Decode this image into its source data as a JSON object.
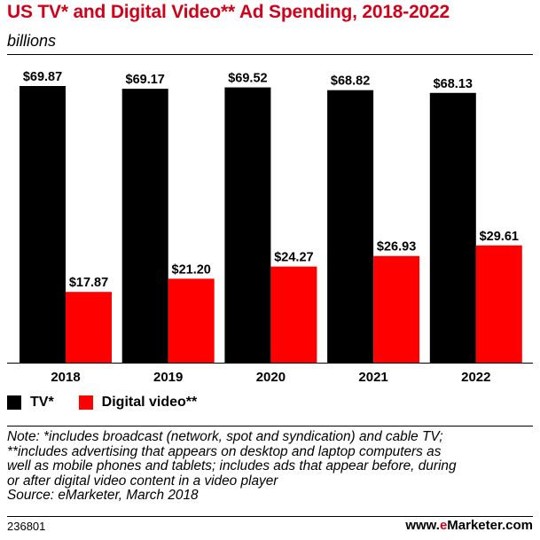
{
  "chart_data": {
    "type": "bar",
    "title": "US TV* and Digital Video** Ad Spending, 2018-2022",
    "subtitle": "billions",
    "categories": [
      "2018",
      "2019",
      "2020",
      "2021",
      "2022"
    ],
    "series": [
      {
        "name": "TV*",
        "color": "#000000",
        "values": [
          69.87,
          69.17,
          69.52,
          68.82,
          68.13
        ],
        "labels": [
          "$69.87",
          "$69.17",
          "$69.52",
          "$68.82",
          "$68.13"
        ]
      },
      {
        "name": "Digital video**",
        "color": "#ff0000",
        "values": [
          17.87,
          21.2,
          24.27,
          26.93,
          29.61
        ],
        "labels": [
          "$17.87",
          "$21.20",
          "$24.27",
          "$26.93",
          "$29.61"
        ]
      }
    ],
    "ylim": [
      0,
      69.87
    ],
    "grid": false,
    "legend": "bottom-left"
  },
  "legend": {
    "tv": "TV*",
    "digital": "Digital video**"
  },
  "notes": {
    "line1": "Note: *includes broadcast (network, spot and syndication) and cable TV;",
    "line2": "**includes advertising that appears on desktop and laptop computers as",
    "line3": "well as mobile phones and tablets; includes ads that appear before, during",
    "line4": "or after digital video content in a video player",
    "source": "Source: eMarketer, March 2018"
  },
  "footer": {
    "chart_id": "236801",
    "brand_prefix": "www.",
    "brand_e": "e",
    "brand_suffix": "Marketer.com"
  }
}
